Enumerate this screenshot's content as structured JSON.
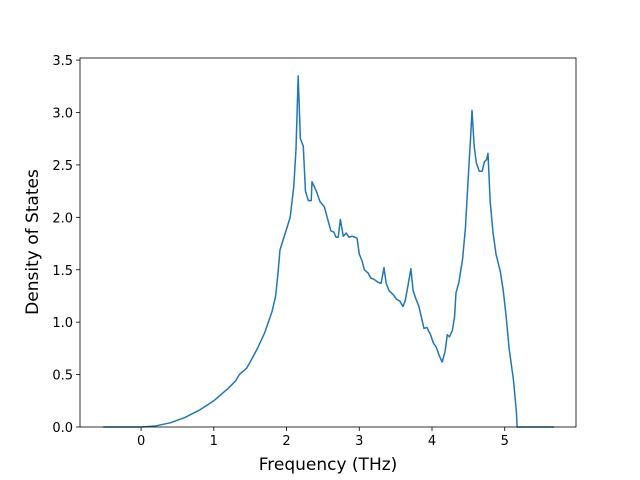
{
  "chart_data": {
    "type": "line",
    "x_label": "Frequency (THz)",
    "y_label": "Density of States",
    "xlim": [
      -0.84,
      5.98
    ],
    "ylim": [
      0,
      3.52
    ],
    "xticks": [
      0,
      1,
      2,
      3,
      4,
      5
    ],
    "yticks": [
      {
        "value": 0,
        "label": "0.0"
      },
      0.5,
      {
        "value": 1,
        "label": "1.0"
      },
      1.5,
      {
        "value": 2,
        "label": "2.0"
      },
      2.5,
      {
        "value": 3,
        "label": "3.0"
      },
      3.5
    ],
    "series": [
      {
        "color": "#1f77b4",
        "x": [
          -0.52,
          0,
          0.2,
          0.4,
          0.6,
          0.8,
          1.0,
          1.2,
          1.3,
          1.35,
          1.45,
          1.5,
          1.6,
          1.7,
          1.8,
          1.85,
          1.88,
          1.91,
          2.05,
          2.1,
          2.13,
          2.16,
          2.19,
          2.23,
          2.26,
          2.3,
          2.34,
          2.35,
          2.41,
          2.46,
          2.52,
          2.57,
          2.61,
          2.65,
          2.68,
          2.71,
          2.74,
          2.78,
          2.82,
          2.86,
          2.9,
          2.94,
          2.97,
          3.0,
          3.04,
          3.07,
          3.12,
          3.16,
          3.2,
          3.26,
          3.3,
          3.34,
          3.37,
          3.41,
          3.47,
          3.51,
          3.56,
          3.6,
          3.63,
          3.67,
          3.71,
          3.74,
          3.78,
          3.82,
          3.87,
          3.89,
          3.93,
          3.98,
          4.02,
          4.06,
          4.1,
          4.14,
          4.18,
          4.21,
          4.24,
          4.28,
          4.31,
          4.33,
          4.37,
          4.42,
          4.46,
          4.5,
          4.53,
          4.55,
          4.58,
          4.61,
          4.65,
          4.69,
          4.72,
          4.75,
          4.77,
          4.8,
          4.84,
          4.88,
          4.94,
          4.98,
          5.02,
          5.06,
          5.12,
          5.16,
          5.17,
          5.68
        ],
        "values": [
          0,
          0,
          0.01,
          0.04,
          0.09,
          0.16,
          0.25,
          0.37,
          0.44,
          0.5,
          0.56,
          0.62,
          0.75,
          0.9,
          1.1,
          1.25,
          1.45,
          1.69,
          2.0,
          2.3,
          2.65,
          3.35,
          2.75,
          2.68,
          2.25,
          2.16,
          2.16,
          2.34,
          2.25,
          2.15,
          2.1,
          1.97,
          1.87,
          1.86,
          1.81,
          1.81,
          1.98,
          1.82,
          1.85,
          1.81,
          1.82,
          1.81,
          1.8,
          1.65,
          1.58,
          1.5,
          1.47,
          1.42,
          1.41,
          1.38,
          1.37,
          1.52,
          1.37,
          1.3,
          1.26,
          1.22,
          1.2,
          1.15,
          1.2,
          1.35,
          1.51,
          1.3,
          1.22,
          1.15,
          1.0,
          0.94,
          0.95,
          0.88,
          0.8,
          0.76,
          0.68,
          0.62,
          0.72,
          0.88,
          0.86,
          0.92,
          1.05,
          1.28,
          1.38,
          1.6,
          1.9,
          2.4,
          2.75,
          3.02,
          2.68,
          2.52,
          2.44,
          2.44,
          2.53,
          2.55,
          2.61,
          2.15,
          1.85,
          1.65,
          1.48,
          1.3,
          1.05,
          0.75,
          0.45,
          0.15,
          0,
          0
        ]
      }
    ]
  }
}
